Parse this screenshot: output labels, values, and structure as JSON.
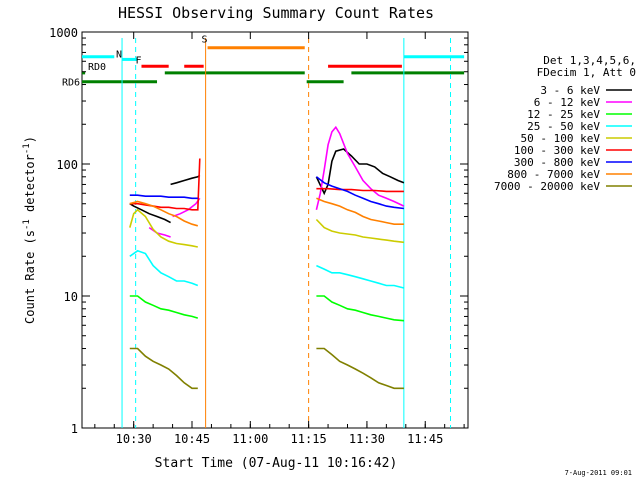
{
  "chart_data": {
    "type": "line",
    "title": "HESSI Observing Summary Count Rates",
    "xlabel": "Start Time (07-Aug-11 10:16:42)",
    "ylabel": "Count Rate (s⁻¹ detector⁻¹)",
    "ylabel_main": "Count Rate (s",
    "ylabel_exp1": "-1",
    "ylabel_mid": " detector",
    "ylabel_exp2": "-1",
    "ylabel_end": ")",
    "ylim": [
      1,
      1000
    ],
    "yscale": "log",
    "xlim": [
      "10:16:42",
      "11:56:00"
    ],
    "xticks": [
      {
        "t": "10:30",
        "label": "10:30"
      },
      {
        "t": "10:45",
        "label": "10:45"
      },
      {
        "t": "11:00",
        "label": "11:00"
      },
      {
        "t": "11:15",
        "label": "11:15"
      },
      {
        "t": "11:30",
        "label": "11:30"
      },
      {
        "t": "11:45",
        "label": "11:45"
      }
    ],
    "yticks": [
      {
        "v": 1,
        "label": "1"
      },
      {
        "v": 10,
        "label": "10"
      },
      {
        "v": 100,
        "label": "100"
      },
      {
        "v": 1000,
        "label": "1000"
      }
    ],
    "legend_header": [
      "Det 1,3,4,5,6,",
      "FDecim 1, Att 0"
    ],
    "timestamp": "7-Aug-2011 09:01",
    "series": [
      {
        "name": "3 - 6 keV",
        "color": "#000000",
        "segments": [
          {
            "x": [
              "10:29:00",
              "10:30:00",
              "10:32:00",
              "10:34:00",
              "10:36:00",
              "10:38:00",
              "10:39:30"
            ],
            "y": [
              50,
              48,
              45,
              42,
              40,
              38,
              36
            ]
          },
          {
            "x": [
              "10:39:30",
              "10:41:00",
              "10:43:00",
              "10:45:00",
              "10:46:30",
              "10:47:00"
            ],
            "y": [
              70,
              72,
              75,
              78,
              80,
              82
            ]
          },
          {
            "x": [
              "11:17:00",
              "11:19:00",
              "11:20:00",
              "11:21:00",
              "11:22:00",
              "11:24:00",
              "11:26:00",
              "11:28:00",
              "11:30:00",
              "11:32:00",
              "11:34:00",
              "11:36:00",
              "11:38:00",
              "11:39:30"
            ],
            "y": [
              80,
              60,
              70,
              105,
              125,
              130,
              115,
              100,
              100,
              95,
              85,
              80,
              75,
              72
            ]
          }
        ]
      },
      {
        "name": "6 - 12 keV",
        "color": "#ff00ff",
        "segments": [
          {
            "x": [
              "10:34:00",
              "10:36:00",
              "10:38:00",
              "10:39:30"
            ],
            "y": [
              33,
              30,
              29,
              28
            ]
          },
          {
            "x": [
              "10:40:00",
              "10:42:00",
              "10:44:00",
              "10:46:00",
              "10:47:00"
            ],
            "y": [
              40,
              42,
              45,
              50,
              55
            ]
          },
          {
            "x": [
              "11:17:00",
              "11:18:00",
              "11:19:00",
              "11:20:00",
              "11:21:00",
              "11:22:00",
              "11:23:00",
              "11:25:00",
              "11:27:00",
              "11:29:00",
              "11:31:00",
              "11:33:00",
              "11:35:00",
              "11:37:00",
              "11:39:30"
            ],
            "y": [
              45,
              60,
              90,
              140,
              175,
              190,
              170,
              120,
              95,
              75,
              65,
              58,
              55,
              52,
              48
            ]
          }
        ]
      },
      {
        "name": "12 - 25 keV",
        "color": "#00ff00",
        "segments": [
          {
            "x": [
              "10:29:00",
              "10:31:00",
              "10:33:00",
              "10:35:00",
              "10:37:00",
              "10:39:00",
              "10:41:00",
              "10:43:00",
              "10:45:00",
              "10:46:30"
            ],
            "y": [
              10,
              10,
              9,
              8.5,
              8,
              7.8,
              7.5,
              7.2,
              7,
              6.8
            ]
          },
          {
            "x": [
              "11:17:00",
              "11:19:00",
              "11:21:00",
              "11:23:00",
              "11:25:00",
              "11:27:00",
              "11:29:00",
              "11:31:00",
              "11:33:00",
              "11:35:00",
              "11:37:00",
              "11:39:30"
            ],
            "y": [
              10,
              10,
              9,
              8.5,
              8,
              7.8,
              7.5,
              7.2,
              7,
              6.8,
              6.6,
              6.5
            ]
          }
        ]
      },
      {
        "name": "25 - 50 keV",
        "color": "#00ffff",
        "segments": [
          {
            "x": [
              "10:29:00",
              "10:31:00",
              "10:33:00",
              "10:35:00",
              "10:37:00",
              "10:39:00",
              "10:41:00",
              "10:43:00",
              "10:45:00",
              "10:46:30"
            ],
            "y": [
              20,
              22,
              21,
              17,
              15,
              14,
              13,
              13,
              12.5,
              12
            ]
          },
          {
            "x": [
              "11:17:00",
              "11:19:00",
              "11:21:00",
              "11:23:00",
              "11:25:00",
              "11:27:00",
              "11:29:00",
              "11:31:00",
              "11:33:00",
              "11:35:00",
              "11:37:00",
              "11:39:30"
            ],
            "y": [
              17,
              16,
              15,
              15,
              14.5,
              14,
              13.5,
              13,
              12.5,
              12,
              12,
              11.5
            ]
          }
        ]
      },
      {
        "name": "50 - 100 keV",
        "color": "#cccc00",
        "segments": [
          {
            "x": [
              "10:29:00",
              "10:30:00",
              "10:31:00",
              "10:33:00",
              "10:35:00",
              "10:37:00",
              "10:39:00",
              "10:41:00",
              "10:43:00",
              "10:45:00",
              "10:46:30"
            ],
            "y": [
              33,
              42,
              45,
              40,
              32,
              28,
              26,
              25,
              24.5,
              24,
              23.5
            ]
          },
          {
            "x": [
              "11:17:00",
              "11:19:00",
              "11:21:00",
              "11:23:00",
              "11:25:00",
              "11:27:00",
              "11:29:00",
              "11:31:00",
              "11:33:00",
              "11:35:00",
              "11:37:00",
              "11:39:30"
            ],
            "y": [
              38,
              33,
              31,
              30,
              29.5,
              29,
              28,
              27.5,
              27,
              26.5,
              26,
              25.5
            ]
          }
        ]
      },
      {
        "name": "100 - 300 keV",
        "color": "#ff0000",
        "segments": [
          {
            "x": [
              "10:29:00",
              "10:31:00",
              "10:33:00",
              "10:35:00",
              "10:37:00",
              "10:39:00",
              "10:41:00",
              "10:43:00",
              "10:45:00",
              "10:46:30",
              "10:47:00"
            ],
            "y": [
              50,
              50,
              49,
              48,
              47,
              47,
              46,
              46,
              45,
              45,
              110
            ]
          },
          {
            "x": [
              "11:17:00",
              "11:20:00",
              "11:23:00",
              "11:26:00",
              "11:29:00",
              "11:32:00",
              "11:35:00",
              "11:37:00",
              "11:39:30"
            ],
            "y": [
              65,
              65,
              64,
              64,
              63,
              63,
              62,
              62,
              62
            ]
          }
        ]
      },
      {
        "name": "300 - 800 keV",
        "color": "#0000ff",
        "segments": [
          {
            "x": [
              "10:29:00",
              "10:31:00",
              "10:33:00",
              "10:35:00",
              "10:37:00",
              "10:39:00",
              "10:41:00",
              "10:43:00",
              "10:45:00",
              "10:46:30"
            ],
            "y": [
              58,
              58,
              57,
              57,
              57,
              56,
              56,
              56,
              55,
              55
            ]
          },
          {
            "x": [
              "11:17:00",
              "11:19:00",
              "11:21:00",
              "11:23:00",
              "11:25:00",
              "11:27:00",
              "11:29:00",
              "11:31:00",
              "11:33:00",
              "11:35:00",
              "11:37:00",
              "11:39:30"
            ],
            "y": [
              80,
              72,
              68,
              65,
              62,
              58,
              55,
              52,
              50,
              48,
              47,
              46
            ]
          }
        ]
      },
      {
        "name": "800 - 7000 keV",
        "color": "#ff8000",
        "segments": [
          {
            "x": [
              "10:29:00",
              "10:31:00",
              "10:33:00",
              "10:35:00",
              "10:37:00",
              "10:39:00",
              "10:41:00",
              "10:43:00",
              "10:45:00",
              "10:46:30"
            ],
            "y": [
              50,
              52,
              50,
              48,
              45,
              42,
              40,
              37,
              35,
              34
            ]
          },
          {
            "x": [
              "11:17:00",
              "11:19:00",
              "11:21:00",
              "11:23:00",
              "11:25:00",
              "11:27:00",
              "11:29:00",
              "11:31:00",
              "11:33:00",
              "11:35:00",
              "11:37:00",
              "11:39:30"
            ],
            "y": [
              55,
              52,
              50,
              48,
              45,
              43,
              40,
              38,
              37,
              36,
              35,
              35
            ]
          }
        ]
      },
      {
        "name": "7000 - 20000 keV",
        "color": "#808000",
        "segments": [
          {
            "x": [
              "10:29:00",
              "10:31:00",
              "10:33:00",
              "10:35:00",
              "10:37:00",
              "10:39:00",
              "10:41:00",
              "10:43:00",
              "10:45:00",
              "10:46:30"
            ],
            "y": [
              4,
              4,
              3.5,
              3.2,
              3,
              2.8,
              2.5,
              2.2,
              2,
              2
            ]
          },
          {
            "x": [
              "11:17:00",
              "11:19:00",
              "11:21:00",
              "11:23:00",
              "11:25:00",
              "11:27:00",
              "11:29:00",
              "11:31:00",
              "11:33:00",
              "11:35:00",
              "11:37:00",
              "11:39:30"
            ],
            "y": [
              4,
              4,
              3.6,
              3.2,
              3,
              2.8,
              2.6,
              2.4,
              2.2,
              2.1,
              2,
              2
            ]
          }
        ]
      }
    ],
    "bars": [
      {
        "label": "",
        "color": "#00ffff",
        "start": "10:16:42",
        "end": "10:25:00",
        "level": 650
      },
      {
        "label": "N",
        "color": "#00ffff",
        "start": "10:27:00",
        "end": "10:31:00",
        "level": 620
      },
      {
        "label": "F",
        "color": "#ff0000",
        "start": "10:32:00",
        "end": "10:39:00",
        "level": 550
      },
      {
        "label": "",
        "color": "#ff0000",
        "start": "10:43:00",
        "end": "10:48:00",
        "level": 550
      },
      {
        "label": "S",
        "color": "#ff8000",
        "start": "10:49:00",
        "end": "11:14:00",
        "level": 760
      },
      {
        "label": "",
        "color": "#ff0000",
        "start": "11:20:00",
        "end": "11:39:00",
        "level": 550
      },
      {
        "label": "",
        "color": "#00ffff",
        "start": "11:39:30",
        "end": "11:55:00",
        "level": 650
      },
      {
        "label": "RD0",
        "color": "#008000",
        "start": "10:16:42",
        "end": "10:17:30",
        "level": 490
      },
      {
        "label": "RD6",
        "color": "#008000",
        "start": "10:16:42",
        "end": "10:36:00",
        "level": 420
      },
      {
        "label": "",
        "color": "#008000",
        "start": "10:38:00",
        "end": "11:14:00",
        "level": 490
      },
      {
        "label": "",
        "color": "#008000",
        "start": "11:14:30",
        "end": "11:24:00",
        "level": 420
      },
      {
        "label": "",
        "color": "#008000",
        "start": "11:26:00",
        "end": "11:55:00",
        "level": 490
      }
    ],
    "vlines": [
      {
        "t": "10:27:00",
        "color": "#00ffff",
        "style": "solid"
      },
      {
        "t": "10:30:30",
        "color": "#00ffff",
        "style": "dashed"
      },
      {
        "t": "10:48:30",
        "color": "#ff8000",
        "style": "solid"
      },
      {
        "t": "11:15:00",
        "color": "#ff8000",
        "style": "dashed"
      },
      {
        "t": "11:39:30",
        "color": "#00ffff",
        "style": "solid"
      },
      {
        "t": "11:51:30",
        "color": "#00ffff",
        "style": "dashed"
      }
    ]
  }
}
